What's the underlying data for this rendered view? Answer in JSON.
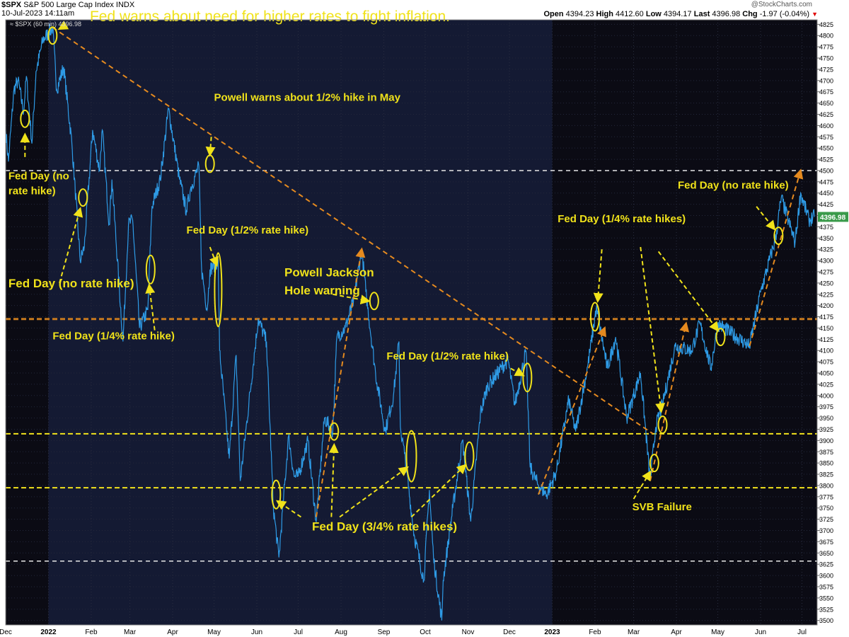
{
  "header": {
    "symbol": "$SPX",
    "name": "S&P 500 Large Cap Index",
    "exchange": "INDX",
    "date_time": "10-Jul-2023 14:11am",
    "legend_symbol": "$SPX",
    "legend_detail": "(60 min) 4396.98",
    "watermark": "@StockCharts.com",
    "quote": {
      "open_label": "Open",
      "open": "4394.23",
      "high_label": "High",
      "high": "4412.60",
      "low_label": "Low",
      "low": "4394.17",
      "last_label": "Last",
      "last": "4396.98",
      "chg_label": "Chg",
      "chg": "-1.97 (-0.04%)"
    },
    "last_price_tag": "4396.98"
  },
  "colors": {
    "background": "#0b0b14",
    "shade": "#141a33",
    "price_line": "#2e9be6",
    "annotation_yellow": "#f0e21a",
    "trend_orange": "#e58a1f",
    "dashed_white": "#e8e8e8",
    "dashed_orange": "#c87a1e",
    "dashed_yellow": "#f2e21c",
    "last_tag": "#3a9a4a"
  },
  "chart_data": {
    "type": "line",
    "symbol": "$SPX",
    "interval": "60 min",
    "x_range": [
      "2021-12-01",
      "2023-07-12"
    ],
    "ylim": [
      3490,
      4835
    ],
    "x_tick_labels": [
      {
        "label": "Dec",
        "date": "2021-12-01",
        "bold": false
      },
      {
        "label": "2022",
        "date": "2022-01-01",
        "bold": true
      },
      {
        "label": "Feb",
        "date": "2022-02-01",
        "bold": false
      },
      {
        "label": "Mar",
        "date": "2022-03-01",
        "bold": false
      },
      {
        "label": "Apr",
        "date": "2022-04-01",
        "bold": false
      },
      {
        "label": "May",
        "date": "2022-05-01",
        "bold": false
      },
      {
        "label": "Jun",
        "date": "2022-06-01",
        "bold": false
      },
      {
        "label": "Jul",
        "date": "2022-07-01",
        "bold": false
      },
      {
        "label": "Aug",
        "date": "2022-08-01",
        "bold": false
      },
      {
        "label": "Sep",
        "date": "2022-09-01",
        "bold": false
      },
      {
        "label": "Oct",
        "date": "2022-10-01",
        "bold": false
      },
      {
        "label": "Nov",
        "date": "2022-11-01",
        "bold": false
      },
      {
        "label": "Dec",
        "date": "2022-12-01",
        "bold": false
      },
      {
        "label": "2023",
        "date": "2023-01-01",
        "bold": true
      },
      {
        "label": "Feb",
        "date": "2023-02-01",
        "bold": false
      },
      {
        "label": "Mar",
        "date": "2023-03-01",
        "bold": false
      },
      {
        "label": "Apr",
        "date": "2023-04-01",
        "bold": false
      },
      {
        "label": "May",
        "date": "2023-05-01",
        "bold": false
      },
      {
        "label": "Jun",
        "date": "2023-06-01",
        "bold": false
      },
      {
        "label": "Jul",
        "date": "2023-07-01",
        "bold": false
      }
    ],
    "y_ticks": [
      3500,
      3525,
      3550,
      3575,
      3600,
      3625,
      3650,
      3675,
      3700,
      3725,
      3750,
      3775,
      3800,
      3825,
      3850,
      3875,
      3900,
      3925,
      3950,
      3975,
      4000,
      4025,
      4050,
      4075,
      4100,
      4125,
      4150,
      4175,
      4200,
      4225,
      4250,
      4275,
      4300,
      4325,
      4350,
      4375,
      4400,
      4425,
      4450,
      4475,
      4500,
      4525,
      4550,
      4575,
      4600,
      4625,
      4650,
      4675,
      4700,
      4725,
      4750,
      4775,
      4800,
      4825
    ],
    "shaded_ranges": [
      [
        "2022-01-01",
        "2023-01-01"
      ]
    ],
    "series": [
      {
        "points": [
          [
            "2021-12-01",
            4590
          ],
          [
            "2021-12-03",
            4520
          ],
          [
            "2021-12-07",
            4680
          ],
          [
            "2021-12-10",
            4700
          ],
          [
            "2021-12-14",
            4630
          ],
          [
            "2021-12-16",
            4710
          ],
          [
            "2021-12-20",
            4560
          ],
          [
            "2021-12-23",
            4720
          ],
          [
            "2021-12-28",
            4790
          ],
          [
            "2022-01-04",
            4818
          ],
          [
            "2022-01-07",
            4680
          ],
          [
            "2022-01-12",
            4730
          ],
          [
            "2022-01-18",
            4560
          ],
          [
            "2022-01-24",
            4300
          ],
          [
            "2022-01-27",
            4330
          ],
          [
            "2022-02-02",
            4590
          ],
          [
            "2022-02-07",
            4500
          ],
          [
            "2022-02-09",
            4590
          ],
          [
            "2022-02-14",
            4380
          ],
          [
            "2022-02-16",
            4480
          ],
          [
            "2022-02-24",
            4120
          ],
          [
            "2022-02-28",
            4380
          ],
          [
            "2022-03-03",
            4390
          ],
          [
            "2022-03-08",
            4150
          ],
          [
            "2022-03-14",
            4190
          ],
          [
            "2022-03-17",
            4420
          ],
          [
            "2022-03-23",
            4480
          ],
          [
            "2022-03-29",
            4637
          ],
          [
            "2022-04-06",
            4480
          ],
          [
            "2022-04-11",
            4410
          ],
          [
            "2022-04-14",
            4460
          ],
          [
            "2022-04-20",
            4510
          ],
          [
            "2022-04-22",
            4280
          ],
          [
            "2022-04-26",
            4190
          ],
          [
            "2022-04-28",
            4280
          ],
          [
            "2022-05-04",
            4300
          ],
          [
            "2022-05-05",
            4100
          ],
          [
            "2022-05-12",
            3860
          ],
          [
            "2022-05-17",
            4090
          ],
          [
            "2022-05-20",
            3810
          ],
          [
            "2022-06-02",
            4170
          ],
          [
            "2022-06-08",
            4120
          ],
          [
            "2022-06-13",
            3750
          ],
          [
            "2022-06-17",
            3640
          ],
          [
            "2022-06-24",
            3910
          ],
          [
            "2022-06-28",
            3820
          ],
          [
            "2022-07-01",
            3820
          ],
          [
            "2022-07-08",
            3900
          ],
          [
            "2022-07-14",
            3720
          ],
          [
            "2022-07-20",
            3950
          ],
          [
            "2022-07-26",
            3920
          ],
          [
            "2022-07-29",
            4130
          ],
          [
            "2022-08-04",
            4150
          ],
          [
            "2022-08-10",
            4210
          ],
          [
            "2022-08-16",
            4325
          ],
          [
            "2022-08-19",
            4230
          ],
          [
            "2022-08-26",
            4050
          ],
          [
            "2022-09-02",
            3920
          ],
          [
            "2022-09-08",
            4000
          ],
          [
            "2022-09-12",
            4120
          ],
          [
            "2022-09-13",
            3930
          ],
          [
            "2022-09-16",
            3870
          ],
          [
            "2022-09-23",
            3690
          ],
          [
            "2022-09-30",
            3590
          ],
          [
            "2022-10-04",
            3790
          ],
          [
            "2022-10-07",
            3640
          ],
          [
            "2022-10-13",
            3500
          ],
          [
            "2022-10-14",
            3590
          ],
          [
            "2022-10-21",
            3750
          ],
          [
            "2022-10-28",
            3900
          ],
          [
            "2022-11-03",
            3720
          ],
          [
            "2022-11-10",
            3960
          ],
          [
            "2022-11-15",
            4020
          ],
          [
            "2022-11-30",
            4080
          ],
          [
            "2022-12-05",
            3980
          ],
          [
            "2022-12-13",
            4100
          ],
          [
            "2022-12-16",
            3840
          ],
          [
            "2022-12-22",
            3800
          ],
          [
            "2022-12-28",
            3780
          ],
          [
            "2023-01-04",
            3830
          ],
          [
            "2023-01-13",
            3990
          ],
          [
            "2023-01-18",
            3920
          ],
          [
            "2023-01-27",
            4070
          ],
          [
            "2023-02-02",
            4195
          ],
          [
            "2023-02-10",
            4060
          ],
          [
            "2023-02-16",
            4130
          ],
          [
            "2023-02-24",
            3950
          ],
          [
            "2023-03-06",
            4050
          ],
          [
            "2023-03-13",
            3810
          ],
          [
            "2023-03-17",
            3930
          ],
          [
            "2023-03-22",
            3980
          ],
          [
            "2023-03-31",
            4110
          ],
          [
            "2023-04-12",
            4100
          ],
          [
            "2023-04-18",
            4160
          ],
          [
            "2023-04-26",
            4060
          ],
          [
            "2023-05-01",
            4160
          ],
          [
            "2023-05-10",
            4140
          ],
          [
            "2023-05-24",
            4110
          ],
          [
            "2023-06-01",
            4230
          ],
          [
            "2023-06-12",
            4350
          ],
          [
            "2023-06-16",
            4440
          ],
          [
            "2023-06-26",
            4340
          ],
          [
            "2023-06-30",
            4450
          ],
          [
            "2023-07-06",
            4390
          ],
          [
            "2023-07-10",
            4397
          ]
        ]
      }
    ],
    "horizontal_levels": [
      {
        "value": 4500,
        "style": "white-dashed"
      },
      {
        "value": 4170,
        "style": "orange-dashed"
      },
      {
        "value": 3915,
        "style": "yellow-dashed"
      },
      {
        "value": 3795,
        "style": "yellow-dashed"
      },
      {
        "value": 3632,
        "style": "white-dashed"
      }
    ],
    "trend_lines": [
      {
        "from": [
          "2022-01-04",
          4818
        ],
        "to": [
          "2023-03-15",
          3915
        ]
      },
      {
        "from": [
          "2022-07-14",
          3730
        ],
        "to": [
          "2022-08-16",
          4325
        ]
      },
      {
        "from": [
          "2022-12-22",
          3780
        ],
        "to": [
          "2023-02-08",
          4150
        ]
      },
      {
        "from": [
          "2023-03-13",
          3810
        ],
        "to": [
          "2023-04-08",
          4160
        ]
      },
      {
        "from": [
          "2023-05-24",
          4110
        ],
        "to": [
          "2023-06-30",
          4500
        ]
      }
    ],
    "markers": [
      {
        "date": "2021-12-15",
        "value": 4615,
        "size": "small"
      },
      {
        "date": "2022-01-04",
        "value": 4800,
        "size": "small"
      },
      {
        "date": "2022-01-26",
        "value": 4440,
        "size": "small"
      },
      {
        "date": "2022-03-16",
        "value": 4280,
        "size": "medium"
      },
      {
        "date": "2022-05-04",
        "value": 4235,
        "size": "tall"
      },
      {
        "date": "2022-04-28",
        "value": 4515,
        "size": "small"
      },
      {
        "date": "2022-06-15",
        "value": 3780,
        "size": "medium"
      },
      {
        "date": "2022-07-27",
        "value": 3920,
        "size": "small"
      },
      {
        "date": "2022-08-25",
        "value": 4210,
        "size": "small"
      },
      {
        "date": "2022-09-21",
        "value": 3865,
        "size": "large"
      },
      {
        "date": "2022-11-02",
        "value": 3865,
        "size": "medium"
      },
      {
        "date": "2022-12-14",
        "value": 4040,
        "size": "medium"
      },
      {
        "date": "2023-02-01",
        "value": 4175,
        "size": "medium"
      },
      {
        "date": "2023-03-22",
        "value": 3935,
        "size": "small"
      },
      {
        "date": "2023-03-16",
        "value": 3850,
        "size": "small"
      },
      {
        "date": "2023-05-03",
        "value": 4130,
        "size": "small"
      },
      {
        "date": "2023-06-14",
        "value": 4355,
        "size": "small"
      }
    ],
    "annotations": [
      {
        "text": "Fed warns about need for higher rates to fight inflation.",
        "date": "2022-01-31",
        "value": 4832,
        "size": "large"
      },
      {
        "text": "Powell warns about 1/2% hike in May",
        "date": "2022-05-01",
        "value": 4655,
        "size": "small"
      },
      {
        "text": "Fed Day (no",
        "date": "2021-12-03",
        "value": 4480,
        "size": "small"
      },
      {
        "text": "rate hike)",
        "date": "2021-12-03",
        "value": 4447,
        "size": "small"
      },
      {
        "text": "Fed Day (no rate hike)",
        "date": "2021-12-03",
        "value": 4240,
        "size": "medium"
      },
      {
        "text": "Fed Day (1/4% rate hike)",
        "date": "2022-01-04",
        "value": 4125,
        "size": "small"
      },
      {
        "text": "Fed Day (1/2% rate hike)",
        "date": "2022-04-11",
        "value": 4360,
        "size": "small"
      },
      {
        "text": "Powell Jackson",
        "date": "2022-06-21",
        "value": 4265,
        "size": "medium"
      },
      {
        "text": "Hole warning",
        "date": "2022-06-21",
        "value": 4225,
        "size": "medium"
      },
      {
        "text": "Fed Day (1/2% rate hike)",
        "date": "2022-09-03",
        "value": 4080,
        "size": "small"
      },
      {
        "text": "Fed Day (3/4% rate hikes)",
        "date": "2022-07-11",
        "value": 3700,
        "size": "medium"
      },
      {
        "text": "Fed Day (1/4% rate hikes)",
        "date": "2023-01-05",
        "value": 4385,
        "size": "small"
      },
      {
        "text": "SVB Failure",
        "date": "2023-02-28",
        "value": 3745,
        "size": "small"
      },
      {
        "text": "Fed Day (no rate hike)",
        "date": "2023-04-02",
        "value": 4460,
        "size": "small"
      }
    ],
    "arrows": [
      {
        "color": "yellow",
        "from": [
          "2021-12-15",
          4530
        ],
        "to": [
          "2021-12-15",
          4580
        ]
      },
      {
        "color": "yellow",
        "from": [
          "2022-01-13",
          4822
        ],
        "to": [
          "2022-01-09",
          4815
        ]
      },
      {
        "color": "yellow",
        "from": [
          "2022-01-09",
          4250
        ],
        "to": [
          "2022-01-24",
          4415
        ]
      },
      {
        "color": "yellow",
        "from": [
          "2022-03-19",
          4145
        ],
        "to": [
          "2022-03-15",
          4245
        ]
      },
      {
        "color": "yellow",
        "from": [
          "2022-04-29",
          4575
        ],
        "to": [
          "2022-04-28",
          4535
        ]
      },
      {
        "color": "yellow",
        "from": [
          "2022-04-28",
          4330
        ],
        "to": [
          "2022-05-03",
          4290
        ]
      },
      {
        "color": "yellow",
        "from": [
          "2022-07-26",
          4225
        ],
        "to": [
          "2022-08-21",
          4210
        ]
      },
      {
        "color": "yellow",
        "from": [
          "2022-07-03",
          3730
        ],
        "to": [
          "2022-06-16",
          3765
        ]
      },
      {
        "color": "yellow",
        "from": [
          "2022-07-25",
          3730
        ],
        "to": [
          "2022-07-27",
          3890
        ]
      },
      {
        "color": "yellow",
        "from": [
          "2022-07-31",
          3730
        ],
        "to": [
          "2022-09-18",
          3840
        ]
      },
      {
        "color": "yellow",
        "from": [
          "2022-09-21",
          3730
        ],
        "to": [
          "2022-10-30",
          3845
        ]
      },
      {
        "color": "yellow",
        "from": [
          "2022-12-02",
          4060
        ],
        "to": [
          "2022-12-11",
          4045
        ]
      },
      {
        "color": "yellow",
        "from": [
          "2023-02-06",
          4325
        ],
        "to": [
          "2023-02-03",
          4210
        ]
      },
      {
        "color": "yellow",
        "from": [
          "2023-03-06",
          4330
        ],
        "to": [
          "2023-03-21",
          3965
        ]
      },
      {
        "color": "yellow",
        "from": [
          "2023-03-19",
          4320
        ],
        "to": [
          "2023-05-01",
          4145
        ]
      },
      {
        "color": "yellow",
        "from": [
          "2023-03-01",
          3770
        ],
        "to": [
          "2023-03-13",
          3830
        ]
      },
      {
        "color": "yellow",
        "from": [
          "2023-05-29",
          4420
        ],
        "to": [
          "2023-06-11",
          4370
        ]
      }
    ],
    "last_value": 4396.98
  }
}
